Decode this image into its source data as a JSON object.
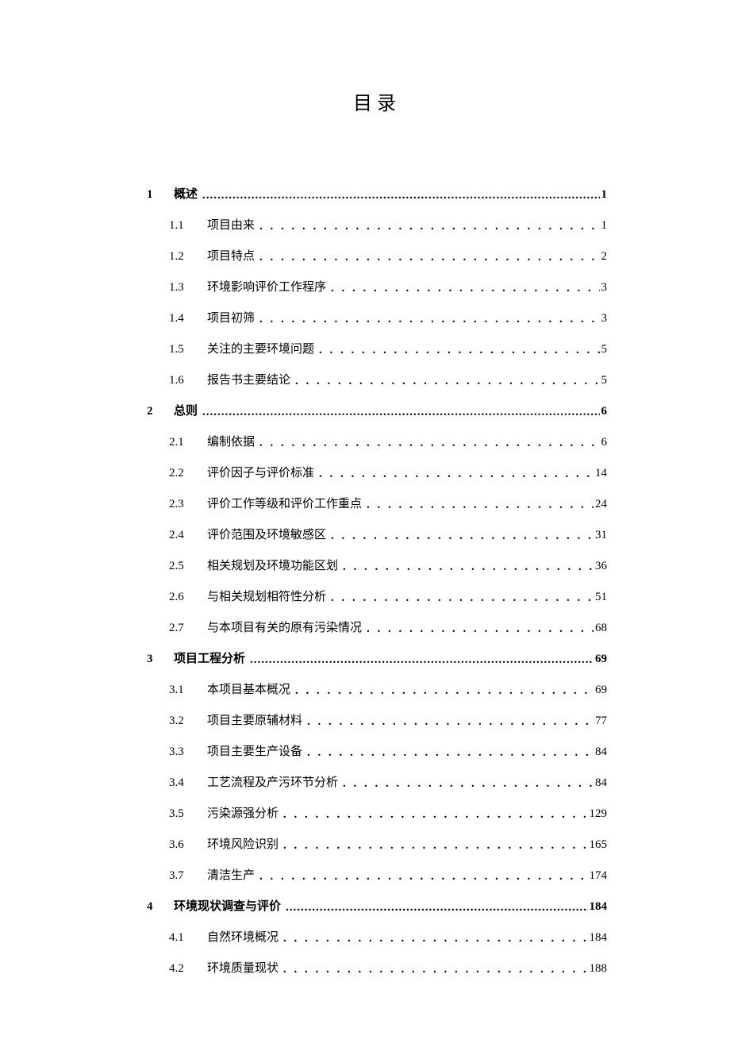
{
  "title": "目录",
  "dots": ". . . . . . . . . . . . . . . . . . . . . . . . . . . . . . . . . . . . . . . . . . . . . . . . . . . . . . . . . . . . . . . . . . . . . . . . . . . . . . . . . . . . . . . . . . . . . . . . . . . . . . . . . . . . . . . . . . . .",
  "dots_l1": "..........................................................................................................................................................................",
  "entries": [
    {
      "level": 1,
      "num": "1",
      "label": "概述",
      "page": "1"
    },
    {
      "level": 2,
      "num": "1.1",
      "label": "项目由来",
      "page": "1"
    },
    {
      "level": 2,
      "num": "1.2",
      "label": "项目特点",
      "page": "2"
    },
    {
      "level": 2,
      "num": "1.3",
      "label": "环境影响评价工作程序",
      "page": "3"
    },
    {
      "level": 2,
      "num": "1.4",
      "label": "项目初筛",
      "page": "3"
    },
    {
      "level": 2,
      "num": "1.5",
      "label": "关注的主要环境问题",
      "page": "5"
    },
    {
      "level": 2,
      "num": "1.6",
      "label": "报告书主要结论",
      "page": "5"
    },
    {
      "level": 1,
      "num": "2",
      "label": "总则",
      "page": "6"
    },
    {
      "level": 2,
      "num": "2.1",
      "label": "编制依据",
      "page": "6"
    },
    {
      "level": 2,
      "num": "2.2",
      "label": "评价因子与评价标准",
      "page": "14"
    },
    {
      "level": 2,
      "num": "2.3",
      "label": "评价工作等级和评价工作重点",
      "page": "24"
    },
    {
      "level": 2,
      "num": "2.4",
      "label": "评价范围及环境敏感区",
      "page": "31"
    },
    {
      "level": 2,
      "num": "2.5",
      "label": "相关规划及环境功能区划",
      "page": "36"
    },
    {
      "level": 2,
      "num": "2.6",
      "label": "与相关规划相符性分析",
      "page": "51"
    },
    {
      "level": 2,
      "num": "2.7",
      "label": "与本项目有关的原有污染情况",
      "page": "68"
    },
    {
      "level": 1,
      "num": "3",
      "label": "项目工程分析",
      "page": "69"
    },
    {
      "level": 2,
      "num": "3.1",
      "label": "本项目基本概况",
      "page": "69"
    },
    {
      "level": 2,
      "num": "3.2",
      "label": "项目主要原辅材料",
      "page": "77"
    },
    {
      "level": 2,
      "num": "3.3",
      "label": "项目主要生产设备",
      "page": "84"
    },
    {
      "level": 2,
      "num": "3.4",
      "label": "工艺流程及产污环节分析",
      "page": "84"
    },
    {
      "level": 2,
      "num": "3.5",
      "label": "污染源强分析",
      "page": "129"
    },
    {
      "level": 2,
      "num": "3.6",
      "label": "环境风险识别",
      "page": "165"
    },
    {
      "level": 2,
      "num": "3.7",
      "label": "清洁生产",
      "page": "174"
    },
    {
      "level": 1,
      "num": "4",
      "label": "环境现状调查与评价",
      "page": "184"
    },
    {
      "level": 2,
      "num": "4.1",
      "label": "自然环境概况",
      "page": "184"
    },
    {
      "level": 2,
      "num": "4.2",
      "label": "环境质量现状",
      "page": "188"
    }
  ]
}
